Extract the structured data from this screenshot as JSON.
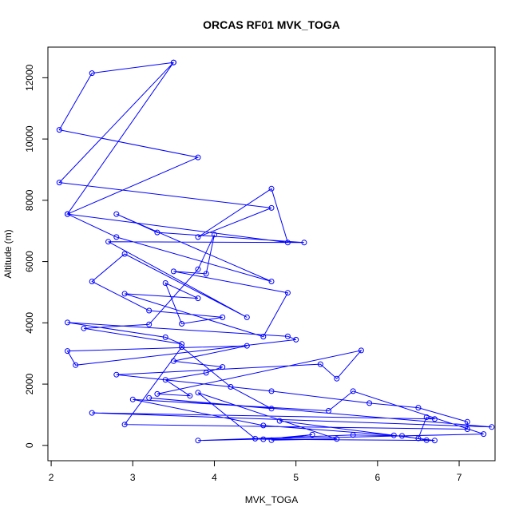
{
  "chart_data": {
    "type": "line",
    "title": "ORCAS RF01 MVK_TOGA",
    "xlabel": "MVK_TOGA",
    "ylabel": "Altitude (m)",
    "xlim": [
      1.96,
      7.44
    ],
    "ylim": [
      -500,
      13000
    ],
    "xticks": [
      2,
      3,
      4,
      5,
      6,
      7
    ],
    "yticks": [
      0,
      2000,
      4000,
      6000,
      8000,
      10000,
      12000
    ],
    "grid": false,
    "legend": "none",
    "color": "#0000ff",
    "markers": "open-circle",
    "series": [
      {
        "x": [
          3.5,
          2.5,
          2.1,
          3.8,
          2.2,
          4.9,
          4.7,
          3.8,
          4.7,
          2.1,
          3.5,
          2.2,
          2.8,
          4.7,
          2.8,
          3.3,
          5.1,
          2.7,
          4.4,
          2.9,
          2.5,
          3.2,
          4.1,
          3.6,
          3.4,
          3.8,
          2.9,
          4.6,
          4.9,
          3.5,
          3.9,
          4.0,
          3.8,
          3.2,
          2.4,
          3.6,
          3.4,
          2.2,
          4.9,
          5.0,
          2.3,
          2.2,
          4.4,
          3.5,
          4.1,
          3.9,
          3.4,
          3.7,
          3.3,
          5.8,
          5.5,
          5.3,
          2.8,
          4.7,
          5.9,
          6.5,
          7.1,
          7.1,
          2.9,
          3.6,
          4.2,
          4.7,
          3.2,
          7.4,
          2.5,
          6.7,
          6.6,
          6.5,
          6.6,
          6.3,
          5.7,
          3.8,
          7.3,
          5.7,
          5.4,
          3.0,
          4.6,
          6.2,
          4.8,
          6.7,
          4.6,
          5.2,
          4.7,
          5.5,
          3.8,
          4.5
        ],
        "y": [
          12500,
          12150,
          10300,
          9400,
          7550,
          6620,
          8380,
          6800,
          7750,
          8580,
          12500,
          7550,
          6800,
          5350,
          7550,
          6950,
          6620,
          6650,
          4180,
          6250,
          5350,
          4400,
          4180,
          3970,
          5300,
          4800,
          4950,
          3550,
          4980,
          5680,
          5600,
          6880,
          5750,
          3950,
          3820,
          3310,
          3530,
          4010,
          3560,
          3450,
          2620,
          3080,
          3250,
          2750,
          2560,
          2370,
          2140,
          1620,
          1680,
          3100,
          2180,
          2650,
          2310,
          1770,
          1380,
          1230,
          770,
          530,
          680,
          3210,
          1910,
          1200,
          1550,
          600,
          1060,
          860,
          920,
          230,
          170,
          310,
          340,
          160,
          370,
          1770,
          1130,
          1500,
          650,
          330,
          800,
          160,
          200,
          350,
          170,
          210,
          1720,
          220
        ]
      }
    ]
  }
}
